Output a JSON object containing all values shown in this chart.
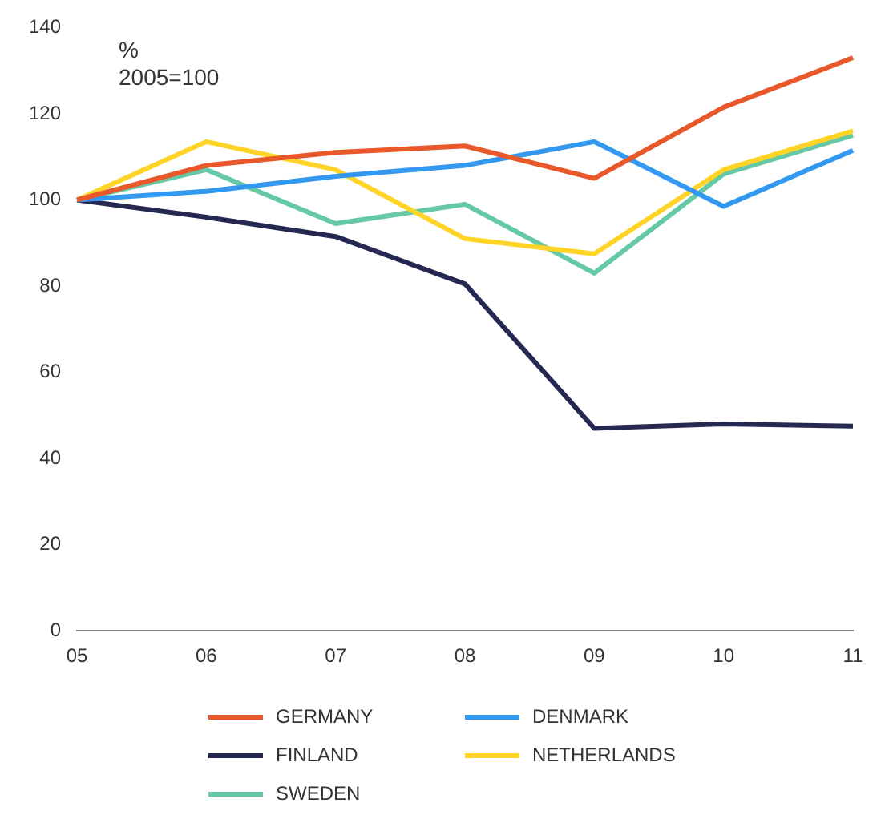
{
  "chart_data": {
    "type": "line",
    "categories": [
      "05",
      "06",
      "07",
      "08",
      "09",
      "10",
      "11"
    ],
    "series": [
      {
        "name": "GERMANY",
        "color": "#e8582a",
        "values": [
          100,
          108,
          111,
          112.5,
          105,
          121.5,
          133
        ]
      },
      {
        "name": "DENMARK",
        "color": "#3399f0",
        "values": [
          100,
          102,
          105.5,
          108,
          113.5,
          98.5,
          111.5
        ]
      },
      {
        "name": "FINLAND",
        "color": "#252850",
        "values": [
          100,
          96,
          91.5,
          80.5,
          47,
          48,
          47.5
        ]
      },
      {
        "name": "NETHERLANDS",
        "color": "#ffd426",
        "values": [
          100,
          113.5,
          107,
          91,
          87.5,
          107,
          116
        ]
      },
      {
        "name": "SWEDEN",
        "color": "#66c9a5",
        "values": [
          100,
          107,
          94.5,
          99,
          83,
          106,
          115
        ]
      }
    ],
    "ylim": [
      0,
      140
    ],
    "yticks": [
      0,
      20,
      40,
      60,
      80,
      100,
      120,
      140
    ],
    "annotations": [
      "%",
      "2005=100"
    ],
    "grid": false,
    "legend": "bottom",
    "marker": "none",
    "line_style": "solid"
  }
}
